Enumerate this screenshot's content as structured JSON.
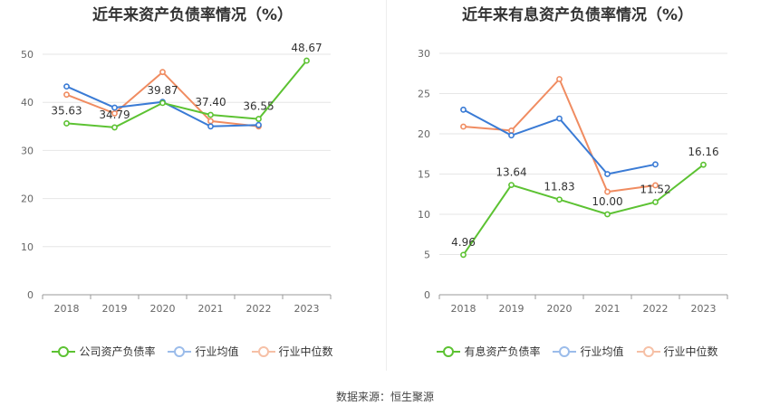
{
  "chart_data": [
    {
      "type": "line",
      "title": "近年来资产负债率情况（%）",
      "categories": [
        "2018",
        "2019",
        "2020",
        "2021",
        "2022",
        "2023"
      ],
      "ylim": [
        0,
        50
      ],
      "yticks": [
        "0",
        "10",
        "20",
        "30",
        "40",
        "50"
      ],
      "series": [
        {
          "name": "公司资产负债率",
          "color": "#5cc232",
          "values": [
            35.63,
            34.79,
            39.87,
            37.4,
            36.55,
            48.67
          ],
          "labels": [
            "35.63",
            "34.79",
            "39.87",
            "37.40",
            "36.55",
            "48.67"
          ]
        },
        {
          "name": "行业均值",
          "color": "#3a7bd5",
          "values": [
            43.3,
            38.9,
            40.1,
            35.0,
            35.3,
            null
          ]
        },
        {
          "name": "行业中位数",
          "color": "#f08c61",
          "values": [
            41.6,
            37.7,
            46.3,
            36.1,
            35.0,
            null
          ]
        }
      ],
      "grid": true,
      "legend": "bottom"
    },
    {
      "type": "line",
      "title": "近年来有息资产负债率情况（%）",
      "categories": [
        "2018",
        "2019",
        "2020",
        "2021",
        "2022",
        "2023"
      ],
      "ylim": [
        0,
        30
      ],
      "yticks": [
        "0",
        "5",
        "10",
        "15",
        "20",
        "25",
        "30"
      ],
      "series": [
        {
          "name": "有息资产负债率",
          "color": "#5cc232",
          "values": [
            4.96,
            13.64,
            11.83,
            10.0,
            11.52,
            16.16
          ],
          "labels": [
            "4.96",
            "13.64",
            "11.83",
            "10.00",
            "11.52",
            "16.16"
          ]
        },
        {
          "name": "行业均值",
          "color": "#3a7bd5",
          "values": [
            23.0,
            19.8,
            21.9,
            15.0,
            16.2,
            null
          ]
        },
        {
          "name": "行业中位数",
          "color": "#f08c61",
          "values": [
            20.9,
            20.4,
            26.8,
            12.8,
            13.6,
            null
          ]
        }
      ],
      "grid": true,
      "legend": "bottom"
    }
  ],
  "footer": {
    "source": "数据来源：恒生聚源"
  }
}
